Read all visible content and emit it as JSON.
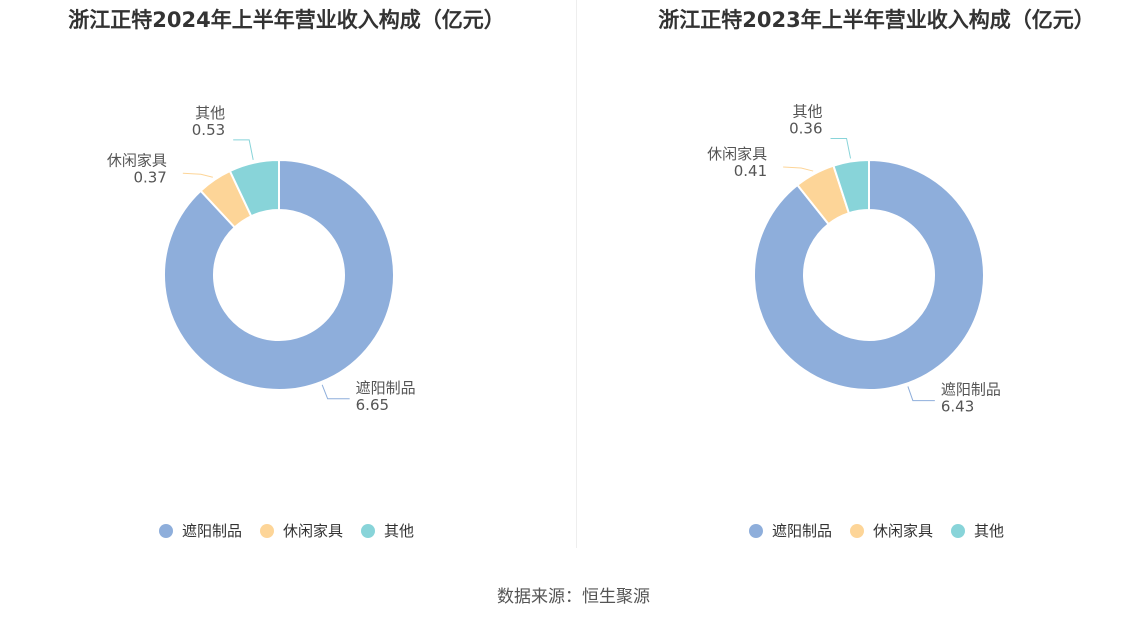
{
  "source": "数据来源：恒生聚源",
  "chart_data": [
    {
      "type": "pie",
      "title": "浙江正特2024年上半年营业收入构成（亿元）",
      "categories": [
        "遮阳制品",
        "休闲家具",
        "其他"
      ],
      "values": [
        6.65,
        0.37,
        0.53
      ],
      "value_labels": [
        "6.65",
        "0.37",
        "0.53"
      ],
      "colors": [
        "#8eaedb",
        "#fdd598",
        "#88d4d9"
      ],
      "legend_position": "bottom",
      "donut": true
    },
    {
      "type": "pie",
      "title": "浙江正特2023年上半年营业收入构成（亿元）",
      "categories": [
        "遮阳制品",
        "休闲家具",
        "其他"
      ],
      "values": [
        6.43,
        0.41,
        0.36
      ],
      "value_labels": [
        "6.43",
        "0.41",
        "0.36"
      ],
      "colors": [
        "#8eaedb",
        "#fdd598",
        "#88d4d9"
      ],
      "legend_position": "bottom",
      "donut": true
    }
  ]
}
